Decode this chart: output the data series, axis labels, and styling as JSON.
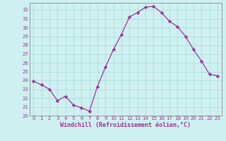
{
  "x": [
    0,
    1,
    2,
    3,
    4,
    5,
    6,
    7,
    8,
    9,
    10,
    11,
    12,
    13,
    14,
    15,
    16,
    17,
    18,
    19,
    20,
    21,
    22,
    23
  ],
  "y": [
    23.9,
    23.5,
    23.0,
    21.7,
    22.2,
    21.2,
    20.9,
    20.5,
    23.3,
    25.5,
    27.5,
    29.2,
    31.2,
    31.7,
    32.3,
    32.4,
    31.7,
    30.7,
    30.1,
    29.0,
    27.5,
    26.2,
    24.7,
    24.5
  ],
  "line_color": "#993399",
  "marker": "D",
  "marker_size": 2.2,
  "bg_color": "#cff0f0",
  "grid_color": "#aadddd",
  "xlabel": "Windchill (Refroidissement éolien,°C)",
  "xlabel_color": "#993399",
  "tick_color": "#993399",
  "spine_color": "#888888",
  "ylim": [
    20,
    32.8
  ],
  "xlim": [
    -0.5,
    23.5
  ],
  "yticks": [
    20,
    21,
    22,
    23,
    24,
    25,
    26,
    27,
    28,
    29,
    30,
    31,
    32
  ],
  "xticks": [
    0,
    1,
    2,
    3,
    4,
    5,
    6,
    7,
    8,
    9,
    10,
    11,
    12,
    13,
    14,
    15,
    16,
    17,
    18,
    19,
    20,
    21,
    22,
    23
  ],
  "tick_fontsize": 5.0,
  "xlabel_fontsize": 6.0
}
